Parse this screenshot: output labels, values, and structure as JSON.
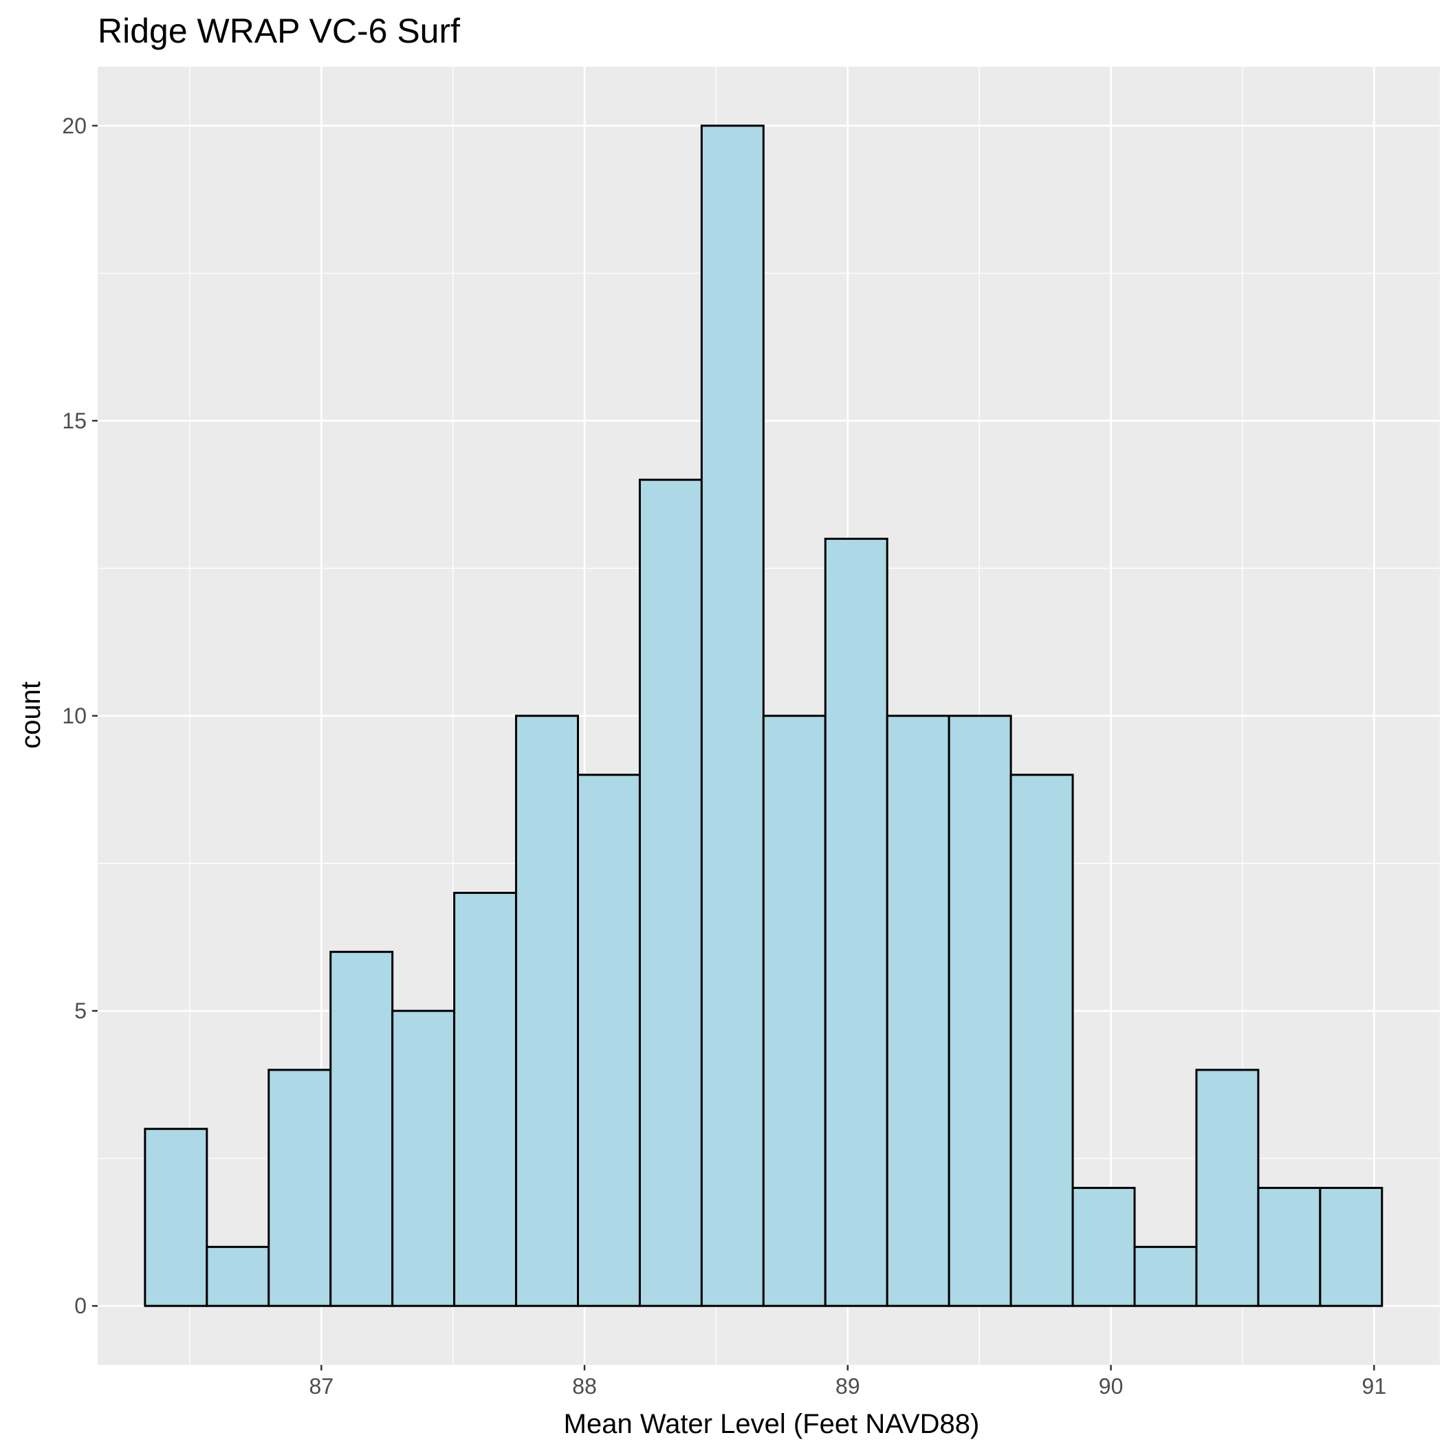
{
  "chart_data": {
    "type": "bar",
    "title": "Ridge WRAP VC-6 Surf",
    "xlabel": "Mean Water Level (Feet NAVD88)",
    "ylabel": "count",
    "xlim": [
      86.15,
      91.25
    ],
    "ylim": [
      -1,
      21
    ],
    "xticks": [
      87,
      88,
      89,
      90,
      91
    ],
    "yticks": [
      0,
      5,
      10,
      15,
      20
    ],
    "bin_edges": [
      86.33,
      86.565,
      86.8,
      87.035,
      87.27,
      87.505,
      87.74,
      87.975,
      88.21,
      88.445,
      88.68,
      88.915,
      89.15,
      89.385,
      89.62,
      89.855,
      90.09,
      90.325,
      90.56,
      90.795,
      91.03
    ],
    "values": [
      3,
      1,
      4,
      6,
      5,
      7,
      10,
      9,
      14,
      20,
      10,
      13,
      10,
      10,
      9,
      2,
      1,
      4,
      2,
      2
    ],
    "grid": true,
    "legend": "none",
    "colors": {
      "panel": "#ebebeb",
      "grid": "#ffffff",
      "bar_fill": "#add8e6",
      "bar_stroke": "#000000"
    }
  }
}
